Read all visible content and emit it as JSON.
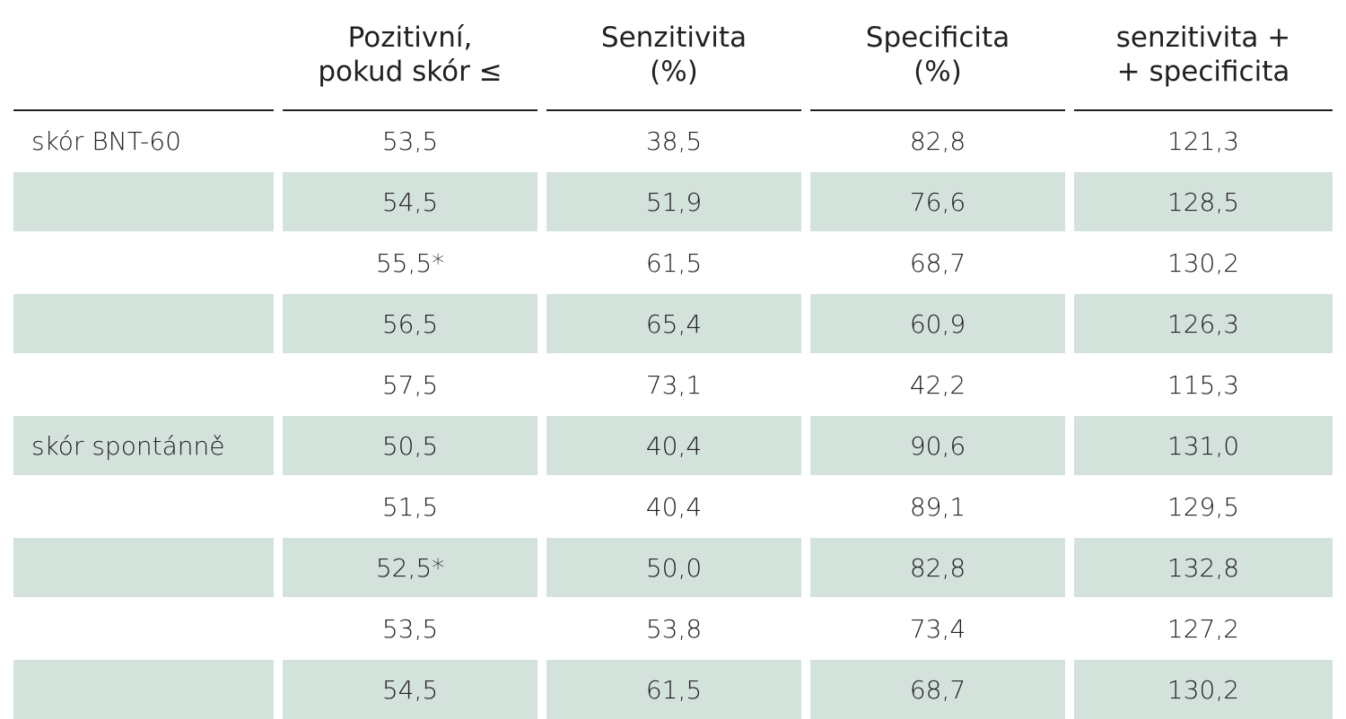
{
  "table": {
    "headers": [
      "",
      "Pozitivní,\npokud skór ≤",
      "Senzitivita\n(%)",
      "Specificita\n(%)",
      "senzitivita +\n+ specificita"
    ],
    "rows": [
      {
        "label": "skór BNT-60",
        "cutoff": "53,5",
        "sens": "38,5",
        "spec": "82,8",
        "sum": "121,3",
        "shaded": false
      },
      {
        "label": "",
        "cutoff": "54,5",
        "sens": "51,9",
        "spec": "76,6",
        "sum": "128,5",
        "shaded": true
      },
      {
        "label": "",
        "cutoff": "55,5*",
        "sens": "61,5",
        "spec": "68,7",
        "sum": "130,2",
        "shaded": false
      },
      {
        "label": "",
        "cutoff": "56,5",
        "sens": "65,4",
        "spec": "60,9",
        "sum": "126,3",
        "shaded": true
      },
      {
        "label": "",
        "cutoff": "57,5",
        "sens": "73,1",
        "spec": "42,2",
        "sum": "115,3",
        "shaded": false
      },
      {
        "label": "skór spontánně",
        "cutoff": "50,5",
        "sens": "40,4",
        "spec": "90,6",
        "sum": "131,0",
        "shaded": true
      },
      {
        "label": "",
        "cutoff": "51,5",
        "sens": "40,4",
        "spec": "89,1",
        "sum": "129,5",
        "shaded": false
      },
      {
        "label": "",
        "cutoff": "52,5*",
        "sens": "50,0",
        "spec": "82,8",
        "sum": "132,8",
        "shaded": true
      },
      {
        "label": "",
        "cutoff": "53,5",
        "sens": "53,8",
        "spec": "73,4",
        "sum": "127,2",
        "shaded": false
      },
      {
        "label": "",
        "cutoff": "54,5",
        "sens": "61,5",
        "spec": "68,7",
        "sum": "130,2",
        "shaded": true
      }
    ]
  }
}
